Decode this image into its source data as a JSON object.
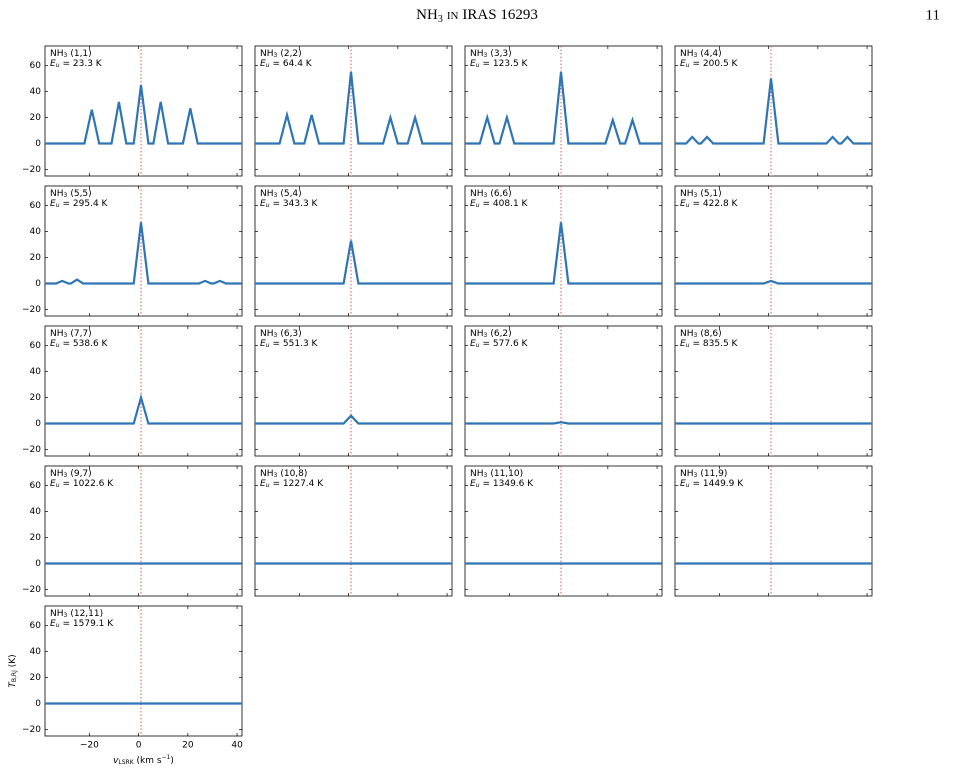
{
  "header": {
    "title_base": "NH",
    "title_sub": "3",
    "title_in": "in",
    "title_rest": "IRAS 16293",
    "page_number": "11"
  },
  "figure": {
    "type": "line",
    "xlim": [
      -38,
      42
    ],
    "ylim": [
      -25,
      75
    ],
    "xticks": [
      {
        "value": -20,
        "label": "−20"
      },
      0,
      20,
      40
    ],
    "yticks": [
      {
        "value": -20,
        "label": "−20"
      },
      0,
      20,
      40,
      60
    ],
    "reference_velocity": 1,
    "model_color": "#2e75b6",
    "reference_color": "#e0555a",
    "species": {
      "base": "NH",
      "sub": "3"
    },
    "energy_symbol": {
      "base": "E",
      "sub": "u"
    },
    "y_label": {
      "base": "T",
      "sub": "B,RJ",
      "rest": " (K)"
    },
    "x_label": {
      "base": "v",
      "sub": "LSRK",
      "rest": " (km s",
      "sup": "−1",
      "end": ")"
    },
    "panels": [
      {
        "transition": "(1,1)",
        "energy": "= 23.3 K",
        "model": {
          "x": [
            -38,
            -22,
            -19,
            -16,
            -11,
            -8,
            -5,
            -2,
            1,
            4,
            6,
            9,
            12,
            18,
            21,
            24,
            42
          ],
          "y": [
            0,
            0,
            26,
            0,
            0,
            32,
            0,
            0,
            45,
            0,
            0,
            32,
            0,
            0,
            27,
            0,
            0
          ]
        }
      },
      {
        "transition": "(2,2)",
        "energy": "= 64.4 K",
        "model": {
          "x": [
            -38,
            -28,
            -25,
            -22,
            -18,
            -15,
            -12,
            -2,
            1,
            4,
            14,
            17,
            20,
            24,
            27,
            30,
            42
          ],
          "y": [
            0,
            0,
            22,
            0,
            0,
            22,
            0,
            0,
            55,
            0,
            0,
            20,
            0,
            0,
            20,
            0,
            0
          ]
        }
      },
      {
        "transition": "(3,3)",
        "energy": "= 123.5 K",
        "model": {
          "x": [
            -38,
            -32,
            -29,
            -26,
            -24,
            -21,
            -18,
            -2,
            1,
            4,
            19,
            22,
            25,
            27,
            30,
            33,
            42
          ],
          "y": [
            0,
            0,
            20,
            0,
            0,
            20,
            0,
            0,
            55,
            0,
            0,
            18,
            0,
            0,
            18,
            0,
            0
          ]
        }
      },
      {
        "transition": "(4,4)",
        "energy": "= 200.5 K",
        "model": {
          "x": [
            -38,
            -33.5,
            -31,
            -28.5,
            -27.5,
            -25,
            -22.5,
            -2,
            1,
            4,
            23.5,
            26,
            28.5,
            29.5,
            32,
            34.5,
            42
          ],
          "y": [
            0,
            0,
            5,
            0,
            0,
            5,
            0,
            0,
            50,
            0,
            0,
            5,
            0,
            0,
            5,
            0,
            0
          ]
        }
      },
      {
        "transition": "(5,5)",
        "energy": "= 295.4 K",
        "model": {
          "x": [
            -38,
            -33.5,
            -31,
            -28.5,
            -27.5,
            -25,
            -22.5,
            -2,
            1,
            4,
            24.5,
            27,
            29.5,
            30.5,
            33,
            35.5,
            42
          ],
          "y": [
            0,
            0,
            2,
            0,
            0,
            3,
            0,
            0,
            47,
            0,
            0,
            2,
            0,
            0,
            2,
            0,
            0
          ]
        }
      },
      {
        "transition": "(5,4)",
        "energy": "= 343.3 K",
        "model": {
          "x": [
            -38,
            -2,
            1,
            4,
            42
          ],
          "y": [
            0,
            0,
            33,
            0,
            0
          ]
        }
      },
      {
        "transition": "(6,6)",
        "energy": "= 408.1 K",
        "model": {
          "x": [
            -38,
            -2,
            1,
            4,
            42
          ],
          "y": [
            0,
            0,
            47,
            0,
            0
          ]
        }
      },
      {
        "transition": "(5,1)",
        "energy": "= 422.8 K",
        "model": {
          "x": [
            -38,
            -2,
            1,
            4,
            42
          ],
          "y": [
            0,
            0,
            2,
            0,
            0
          ]
        }
      },
      {
        "transition": "(7,7)",
        "energy": "= 538.6 K",
        "model": {
          "x": [
            -38,
            -2,
            1,
            4,
            42
          ],
          "y": [
            0,
            0,
            20,
            0,
            0
          ]
        }
      },
      {
        "transition": "(6,3)",
        "energy": "= 551.3 K",
        "model": {
          "x": [
            -38,
            -2,
            1,
            4,
            42
          ],
          "y": [
            0,
            0,
            6,
            0,
            0
          ]
        }
      },
      {
        "transition": "(6,2)",
        "energy": "= 577.6 K",
        "model": {
          "x": [
            -38,
            -2,
            1,
            4,
            42
          ],
          "y": [
            0,
            0,
            1,
            0,
            0
          ]
        }
      },
      {
        "transition": "(8,6)",
        "energy": "= 835.5 K",
        "model": {
          "x": [
            -38,
            42
          ],
          "y": [
            0,
            0
          ]
        }
      },
      {
        "transition": "(9,7)",
        "energy": "= 1022.6 K",
        "model": {
          "x": [
            -38,
            42
          ],
          "y": [
            0,
            0
          ]
        }
      },
      {
        "transition": "(10,8)",
        "energy": "= 1227.4 K",
        "model": {
          "x": [
            -38,
            42
          ],
          "y": [
            0,
            0
          ]
        }
      },
      {
        "transition": "(11,10)",
        "energy": "= 1349.6 K",
        "model": {
          "x": [
            -38,
            42
          ],
          "y": [
            0,
            0
          ]
        }
      },
      {
        "transition": "(11,9)",
        "energy": "= 1449.9 K",
        "model": {
          "x": [
            -38,
            42
          ],
          "y": [
            0,
            0
          ]
        }
      },
      {
        "transition": "(12,11)",
        "energy": "= 1579.1 K",
        "model": {
          "x": [
            -38,
            42
          ],
          "y": [
            0,
            0
          ]
        }
      }
    ]
  }
}
